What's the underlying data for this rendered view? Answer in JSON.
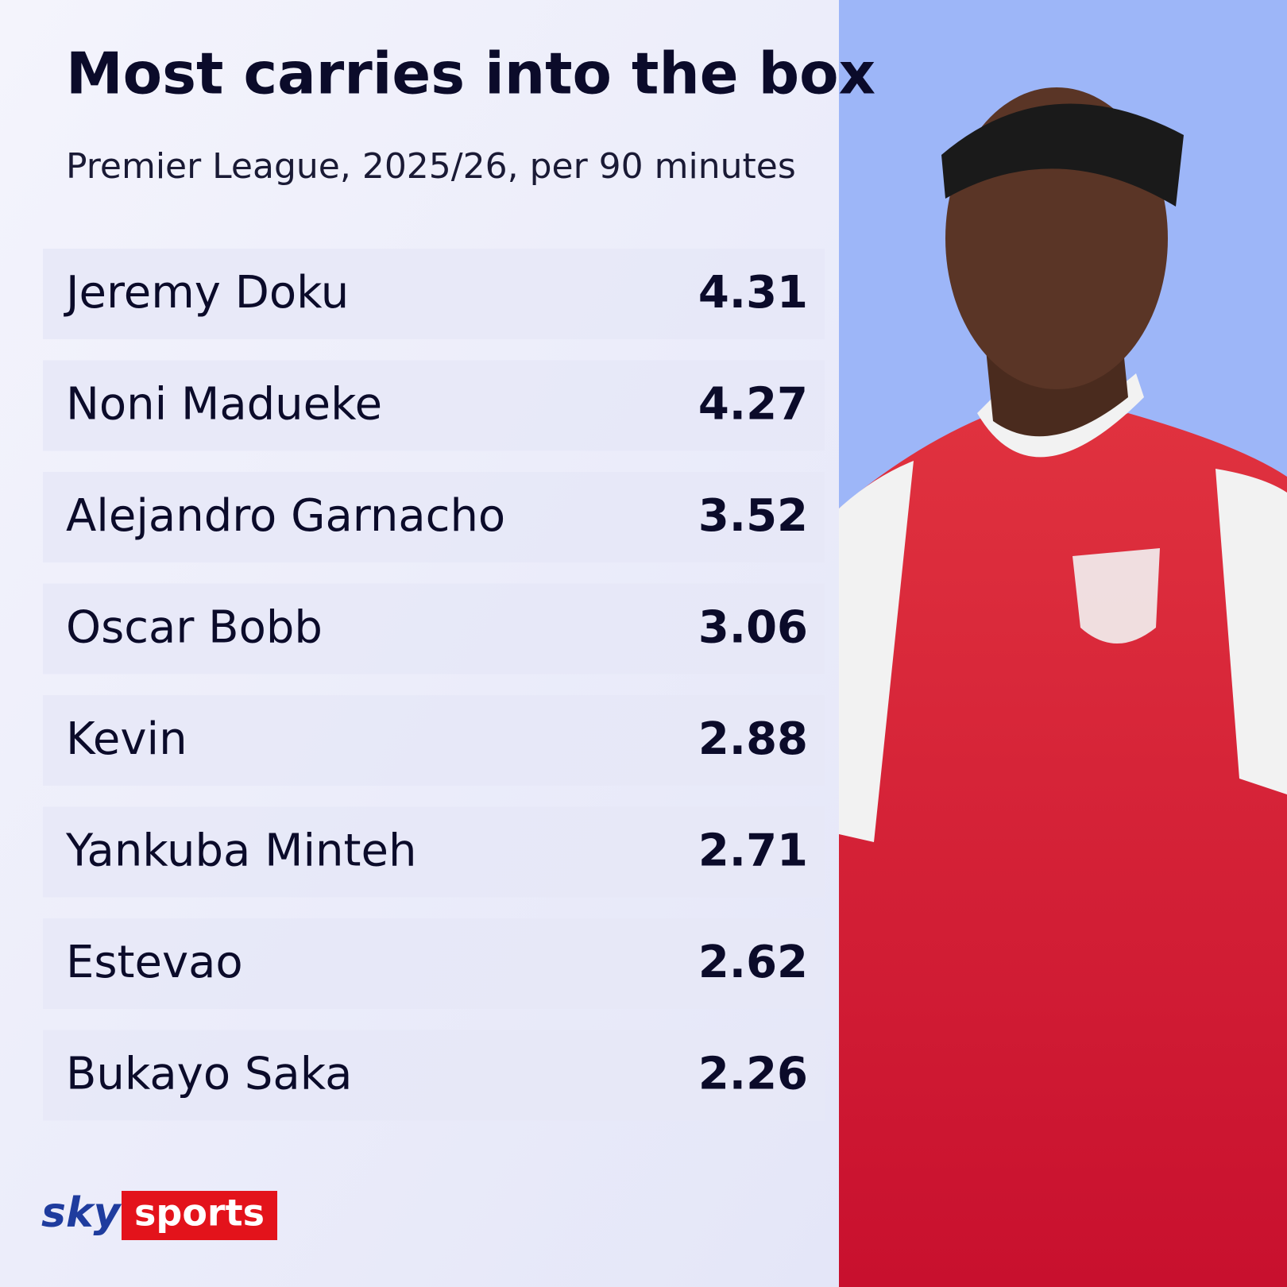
{
  "header": {
    "title": "Most carries into the box",
    "subtitle": "Premier League, 2025/26, per 90 minutes"
  },
  "table": {
    "rows": [
      [
        "Jeremy Doku",
        4.31
      ],
      [
        "Noni Madueke",
        4.27
      ],
      [
        "Alejandro Garnacho",
        3.52
      ],
      [
        "Oscar Bobb",
        3.06
      ],
      [
        "Kevin",
        2.88
      ],
      [
        "Yankuba Minteh",
        2.71
      ],
      [
        "Estevao",
        2.62
      ],
      [
        "Bukayo Saka",
        2.26
      ]
    ]
  },
  "logo": {
    "sky": "sky",
    "sports": "sports"
  }
}
